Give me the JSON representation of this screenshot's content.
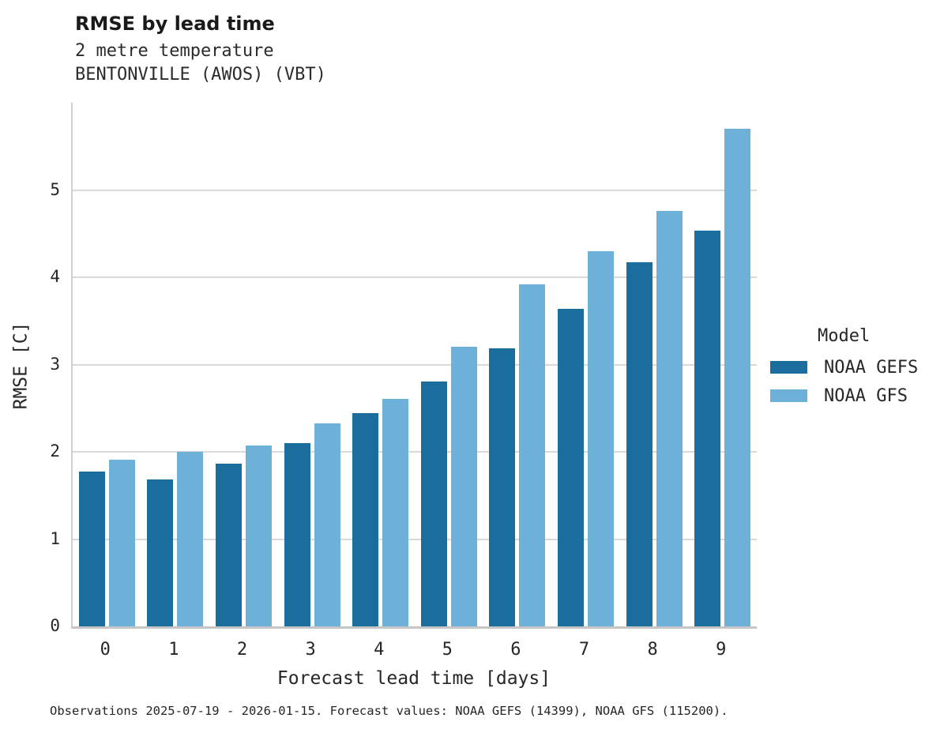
{
  "header": {
    "title": "RMSE by lead time",
    "subtitle_line1": "2 metre temperature",
    "subtitle_line2": "BENTONVILLE (AWOS) (VBT)"
  },
  "caption": "Observations 2025-07-19 - 2026-01-15. Forecast values: NOAA GEFS (14399), NOAA GFS (115200).",
  "chart_data": {
    "type": "bar",
    "title": "RMSE by lead time",
    "subtitle": "2 metre temperature — BENTONVILLE (AWOS) (VBT)",
    "xlabel": "Forecast lead time [days]",
    "ylabel": "RMSE [C]",
    "categories": [
      "0",
      "1",
      "2",
      "3",
      "4",
      "5",
      "6",
      "7",
      "8",
      "9"
    ],
    "series": [
      {
        "name": "NOAA GEFS",
        "color": "#1a6d9d",
        "values": [
          1.77,
          1.68,
          1.86,
          2.1,
          2.44,
          2.81,
          3.19,
          3.64,
          4.17,
          4.53
        ]
      },
      {
        "name": "NOAA GFS",
        "color": "#6db0d8",
        "values": [
          1.91,
          2.0,
          2.07,
          2.33,
          2.61,
          3.2,
          3.92,
          4.3,
          4.76,
          5.7
        ]
      }
    ],
    "ylim": [
      0,
      6
    ],
    "yticks": [
      0,
      1,
      2,
      3,
      4,
      5
    ],
    "grid": "horizontal",
    "legend_title": "Model",
    "legend_position": "center-right",
    "colors": {
      "grid": "#d9d9d9",
      "spine": "#c6c6c6",
      "text": "#262626"
    }
  }
}
